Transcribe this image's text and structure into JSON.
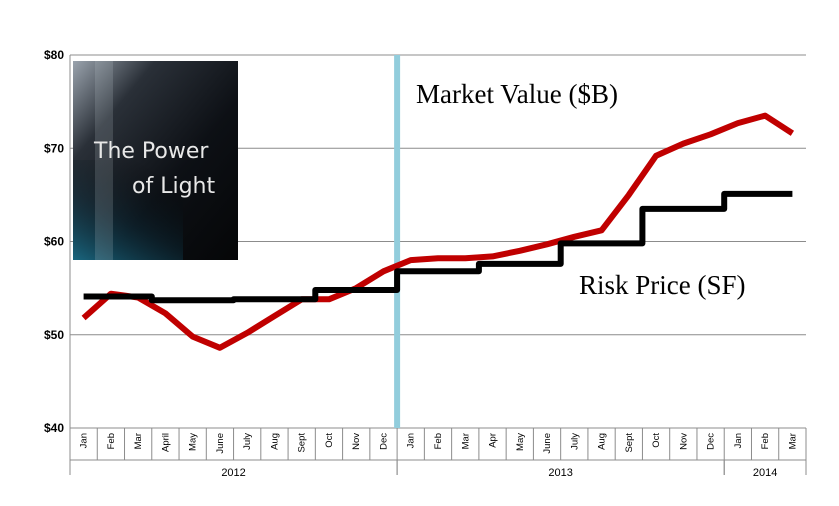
{
  "chart_data": {
    "type": "line",
    "categories": [
      "Jan",
      "Feb",
      "Mar",
      "April",
      "May",
      "June",
      "July",
      "Aug",
      "Sept",
      "Oct",
      "Nov",
      "Dec",
      "Jan",
      "Feb",
      "Mar",
      "Apr",
      "May",
      "June",
      "July",
      "Aug",
      "Sept",
      "Oct",
      "Nov",
      "Dec",
      "Jan",
      "Feb",
      "Mar"
    ],
    "years": [
      {
        "label": "2012",
        "start": 0,
        "end": 11
      },
      {
        "label": "2013",
        "start": 12,
        "end": 23
      },
      {
        "label": "2014",
        "start": 24,
        "end": 26
      }
    ],
    "series": [
      {
        "name": "Market Value ($B)",
        "color": "#c00000",
        "step": false,
        "values": [
          51.8,
          54.4,
          54.0,
          52.3,
          49.8,
          48.6,
          50.2,
          52.0,
          53.8,
          53.8,
          55.0,
          56.8,
          58.0,
          58.2,
          58.2,
          58.4,
          59.0,
          59.7,
          60.5,
          61.2,
          65.0,
          69.2,
          70.5,
          71.5,
          72.7,
          73.5,
          71.6
        ]
      },
      {
        "name": "Risk Price (SF)",
        "color": "#000000",
        "step": true,
        "values": [
          54.1,
          54.1,
          54.1,
          53.7,
          53.7,
          53.7,
          53.8,
          53.8,
          53.8,
          54.8,
          54.8,
          54.8,
          56.8,
          56.8,
          56.8,
          57.6,
          57.6,
          57.6,
          59.8,
          59.8,
          59.8,
          63.5,
          63.5,
          63.5,
          65.1,
          65.1,
          65.1
        ]
      }
    ],
    "yticks": [
      "$40",
      "$50",
      "$60",
      "$70",
      "$80"
    ],
    "ylim": [
      40,
      80
    ],
    "grid": true,
    "divider_after_index": 11,
    "divider_color": "#92cddc",
    "inset_lines": [
      "The Power",
      "of Light"
    ]
  }
}
